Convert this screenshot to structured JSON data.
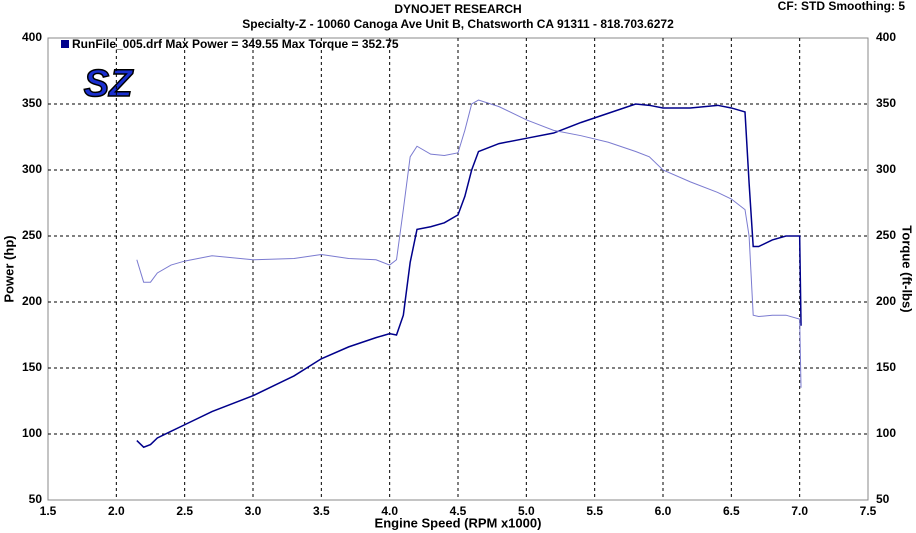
{
  "chart_data": {
    "type": "line",
    "title": "DYNOJET RESEARCH",
    "subtitle": "Specialty-Z - 10060 Canoga Ave Unit B, Chatsworth CA 91311 - 818.703.6272",
    "settings_text": "CF: STD  Smoothing: 5",
    "logo": "SZ",
    "legend_text": "RunFile_005.drf Max Power = 349.55     Max Torque = 352.75",
    "xlabel": "Engine Speed (RPM x1000)",
    "ylabel": "Power (hp)",
    "y2label": "Torque (ft-lbs)",
    "x": [
      2.15,
      2.2,
      2.25,
      2.3,
      2.4,
      2.5,
      2.7,
      3.0,
      3.3,
      3.5,
      3.7,
      3.9,
      4.0,
      4.05,
      4.1,
      4.15,
      4.2,
      4.3,
      4.4,
      4.5,
      4.55,
      4.6,
      4.65,
      4.8,
      5.0,
      5.2,
      5.4,
      5.6,
      5.8,
      5.9,
      6.0,
      6.2,
      6.4,
      6.5,
      6.6,
      6.63,
      6.66,
      6.7,
      6.8,
      6.9,
      7.0,
      7.01
    ],
    "series": [
      {
        "color": "#00008b",
        "values": [
          95,
          90,
          92,
          97,
          102,
          107,
          117,
          129,
          144,
          157,
          166,
          173,
          176,
          175,
          190,
          230,
          255,
          257,
          260,
          266,
          280,
          300,
          314,
          320,
          324,
          328,
          336,
          343,
          350,
          349,
          347,
          347,
          349,
          347,
          344,
          290,
          242,
          242,
          247,
          250,
          250,
          182
        ]
      },
      {
        "color": "#7b7bd0",
        "axis": "y2",
        "values": [
          232,
          215,
          215,
          222,
          228,
          231,
          235,
          232,
          233,
          236,
          233,
          232,
          228,
          232,
          270,
          310,
          318,
          312,
          311,
          313,
          330,
          350,
          353,
          348,
          338,
          330,
          326,
          321,
          314,
          310,
          300,
          291,
          283,
          278,
          270,
          250,
          190,
          189,
          190,
          190,
          187,
          135
        ]
      }
    ],
    "xlim": [
      1.5,
      7.5
    ],
    "xticks": [
      1.5,
      {
        "value": 2,
        "label": "2.0"
      },
      2.5,
      {
        "value": 3,
        "label": "3.0"
      },
      3.5,
      {
        "value": 4,
        "label": "4.0"
      },
      4.5,
      {
        "value": 5,
        "label": "5.0"
      },
      5.5,
      {
        "value": 6,
        "label": "6.0"
      },
      6.5,
      {
        "value": 7,
        "label": "7.0"
      },
      7.5
    ],
    "ylim": [
      50,
      400
    ],
    "yticks": [
      50,
      100,
      150,
      200,
      250,
      300,
      350,
      400
    ],
    "y2lim": [
      50,
      400
    ],
    "y2ticks": [
      50,
      100,
      150,
      200,
      250,
      300,
      350,
      400
    ],
    "grid": true
  }
}
